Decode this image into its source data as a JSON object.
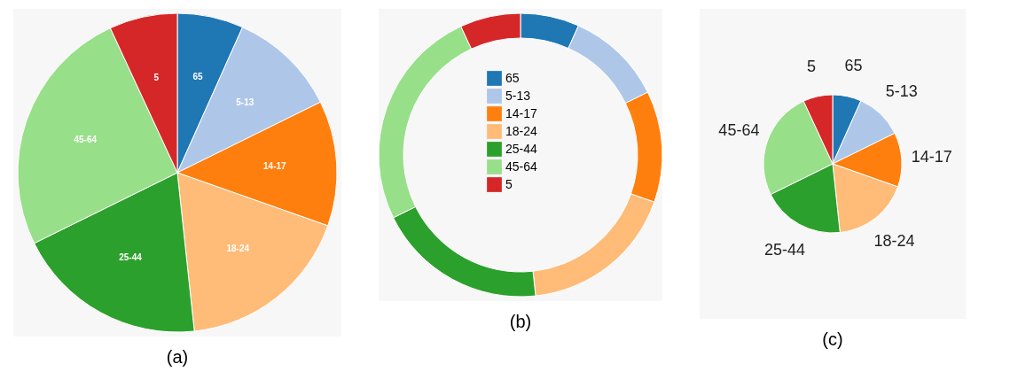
{
  "chart_data": [
    {
      "type": "pie",
      "title": "(a)",
      "categories": [
        "65",
        "5-13",
        "14-17",
        "18-24",
        "25-44",
        "45-64",
        "5"
      ],
      "values": [
        6.7,
        11.0,
        12.7,
        17.9,
        19.4,
        25.4,
        6.9
      ],
      "colors": [
        "#1f77b4",
        "#aec7e8",
        "#ff7f0e",
        "#ffbb78",
        "#2ca02c",
        "#98df8a",
        "#d62728"
      ],
      "legend": false
    },
    {
      "type": "donut",
      "title": "(b)",
      "categories": [
        "65",
        "5-13",
        "14-17",
        "18-24",
        "25-44",
        "45-64",
        "5"
      ],
      "values": [
        6.7,
        11.0,
        12.7,
        17.9,
        19.4,
        25.4,
        6.9
      ],
      "colors": [
        "#1f77b4",
        "#aec7e8",
        "#ff7f0e",
        "#ffbb78",
        "#2ca02c",
        "#98df8a",
        "#d62728"
      ],
      "legend": "center"
    },
    {
      "type": "pie",
      "title": "(c)",
      "categories": [
        "65",
        "5-13",
        "14-17",
        "18-24",
        "25-44",
        "45-64",
        "5"
      ],
      "values": [
        6.7,
        11.0,
        12.7,
        17.9,
        19.4,
        25.4,
        6.9
      ],
      "colors": [
        "#1f77b4",
        "#aec7e8",
        "#ff7f0e",
        "#ffbb78",
        "#2ca02c",
        "#98df8a",
        "#d62728"
      ],
      "legend": false
    }
  ]
}
